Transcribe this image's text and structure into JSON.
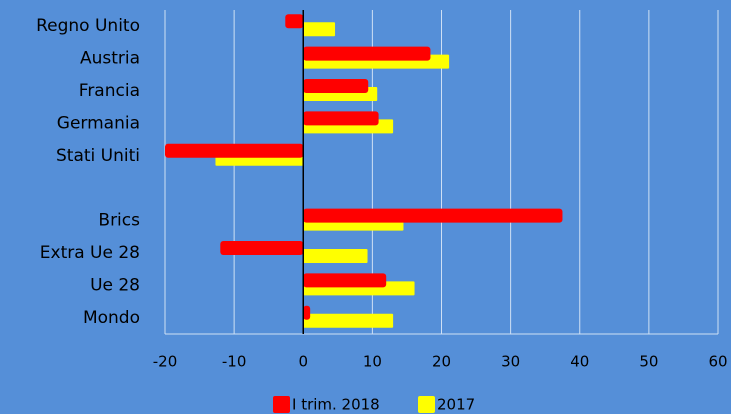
{
  "chart_data": {
    "type": "hbar",
    "categories": [
      "Regno Unito",
      "Austria",
      "Francia",
      "Germania",
      "Stati Uniti",
      null,
      "Brics",
      "Extra Ue 28",
      "Ue 28",
      "Mondo"
    ],
    "series": [
      {
        "name": "I trim. 2018",
        "color": "#ff0000",
        "values": [
          -2.6,
          18.4,
          9.4,
          10.9,
          -20,
          null,
          37.5,
          -12,
          12,
          1.0
        ]
      },
      {
        "name": "2017",
        "color": "#ffff00",
        "values": [
          4.6,
          21.1,
          10.7,
          13.0,
          -12.7,
          null,
          14.5,
          9.3,
          16.1,
          13.0
        ]
      }
    ],
    "xlim": [
      -20,
      60
    ],
    "xticks": [
      -20,
      -10,
      0,
      10,
      20,
      30,
      40,
      50,
      60
    ],
    "grid": true,
    "legend": "bottom"
  }
}
